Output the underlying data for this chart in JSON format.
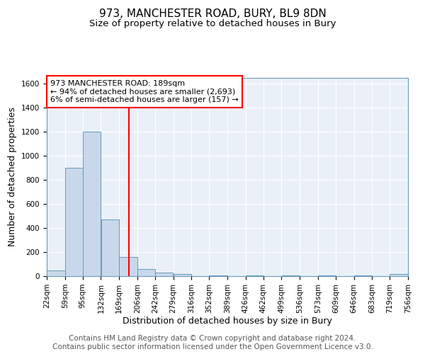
{
  "title1": "973, MANCHESTER ROAD, BURY, BL9 8DN",
  "title2": "Size of property relative to detached houses in Bury",
  "xlabel": "Distribution of detached houses by size in Bury",
  "ylabel": "Number of detached properties",
  "footer1": "Contains HM Land Registry data © Crown copyright and database right 2024.",
  "footer2": "Contains public sector information licensed under the Open Government Licence v3.0.",
  "bin_edges": [
    22,
    59,
    95,
    132,
    169,
    206,
    242,
    279,
    316,
    352,
    389,
    426,
    462,
    499,
    536,
    573,
    609,
    646,
    683,
    719,
    756
  ],
  "bar_heights": [
    50,
    900,
    1200,
    470,
    160,
    60,
    30,
    15,
    0,
    5,
    0,
    5,
    0,
    5,
    0,
    5,
    0,
    5,
    0,
    20
  ],
  "bar_color": "#c8d8ea",
  "bar_edge_color": "#6699bb",
  "vline_x": 189,
  "vline_color": "red",
  "ylim": [
    0,
    1650
  ],
  "annotation_text": "973 MANCHESTER ROAD: 189sqm\n← 94% of detached houses are smaller (2,693)\n6% of semi-detached houses are larger (157) →",
  "annotation_box_color": "white",
  "annotation_edge_color": "red",
  "bg_color": "#eaf0f8",
  "grid_color": "white",
  "title1_fontsize": 11,
  "title2_fontsize": 9.5,
  "xlabel_fontsize": 9,
  "ylabel_fontsize": 9,
  "tick_fontsize": 7.5,
  "footer_fontsize": 7.5,
  "annot_fontsize": 8
}
